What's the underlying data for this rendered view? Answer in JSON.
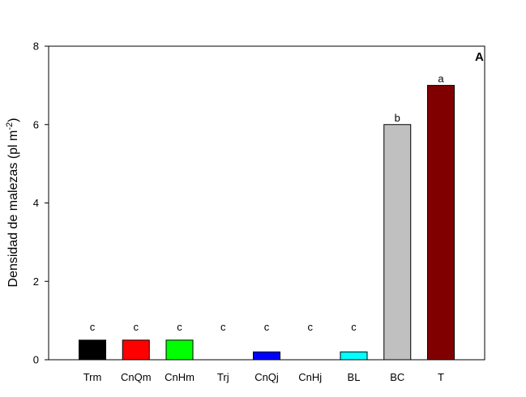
{
  "chart_data": {
    "type": "bar",
    "panel_label": "A",
    "ylabel": "Densidad de malezas (pl m",
    "ylabel_sup": "-2",
    "ylabel_tail": ")",
    "xlabel": "",
    "ylim": [
      0,
      8
    ],
    "yticks": [
      0,
      2,
      4,
      6,
      8
    ],
    "categories": [
      "Trm",
      "CnQm",
      "CnHm",
      "Trj",
      "CnQj",
      "CnHj",
      "BL",
      "BC",
      "T"
    ],
    "values": [
      0.5,
      0.5,
      0.5,
      0,
      0.2,
      0,
      0.2,
      6,
      7
    ],
    "letters": [
      "c",
      "c",
      "c",
      "c",
      "c",
      "c",
      "c",
      "b",
      "a"
    ],
    "colors": [
      "#000000",
      "#ff0000",
      "#00ff00",
      "#ffff00",
      "#0000ff",
      "#ff00ff",
      "#00ffff",
      "#c0c0c0",
      "#800000"
    ],
    "grid": false,
    "legend": "none"
  }
}
